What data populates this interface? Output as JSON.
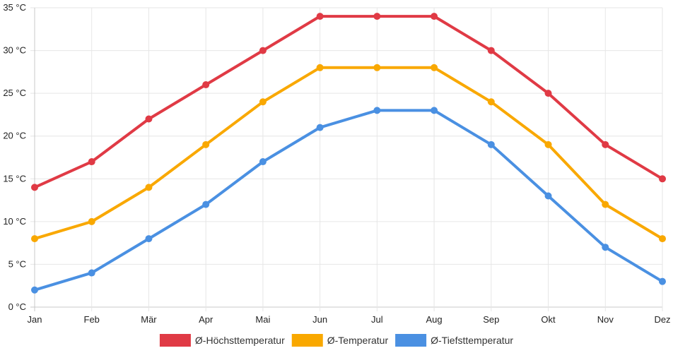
{
  "chart_data": {
    "type": "line",
    "title": "",
    "xlabel": "",
    "ylabel": "",
    "categories": [
      "Jan",
      "Feb",
      "Mär",
      "Apr",
      "Mai",
      "Jun",
      "Jul",
      "Aug",
      "Sep",
      "Okt",
      "Nov",
      "Dez"
    ],
    "ylim": [
      0,
      35
    ],
    "y_ticks": [
      "0 °C",
      "5 °C",
      "10 °C",
      "15 °C",
      "20 °C",
      "25 °C",
      "30 °C",
      "35 °C"
    ],
    "grid": true,
    "legend_position": "bottom",
    "series": [
      {
        "name": "Ø-Höchsttemperatur",
        "color": "#e03a45",
        "values": [
          14,
          17,
          22,
          26,
          30,
          34,
          34,
          34,
          30,
          25,
          19,
          15
        ]
      },
      {
        "name": "Ø-Temperatur",
        "color": "#f9a800",
        "values": [
          8,
          10,
          14,
          19,
          24,
          28,
          28,
          28,
          24,
          19,
          12,
          8
        ]
      },
      {
        "name": "Ø-Tiefsttemperatur",
        "color": "#4a90e2",
        "values": [
          2,
          4,
          8,
          12,
          17,
          21,
          23,
          23,
          19,
          13,
          7,
          3
        ]
      }
    ]
  }
}
